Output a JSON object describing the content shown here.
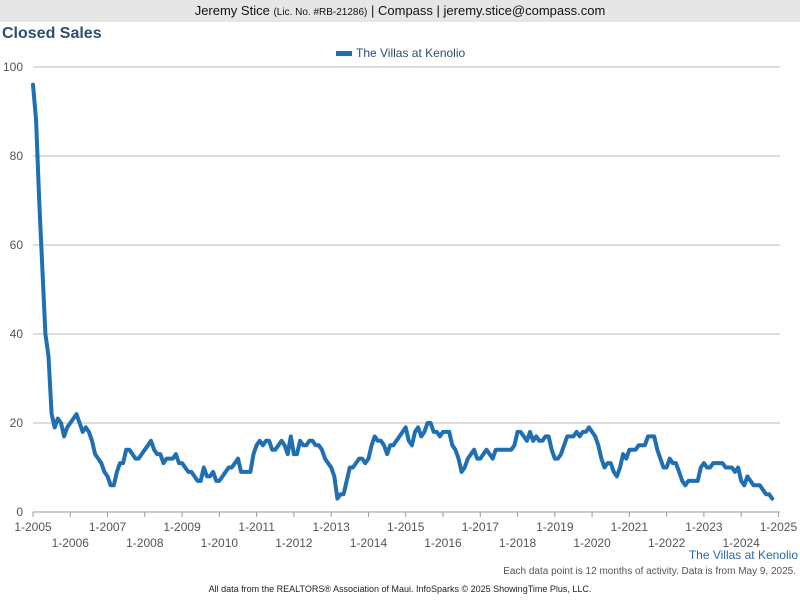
{
  "header": {
    "name": "Jeremy Stice",
    "license": "(Lic. No. #RB-21286)",
    "rest": "| Compass | jeremy.stice@compass.com"
  },
  "chart_data": {
    "type": "line",
    "title": "Closed Sales",
    "xlabel": "",
    "ylabel": "",
    "ylim": [
      0,
      100
    ],
    "y_ticks": [
      0,
      20,
      40,
      60,
      80,
      100
    ],
    "x_ticks": [
      "1-2005",
      "1-2006",
      "1-2007",
      "1-2008",
      "1-2009",
      "1-2010",
      "1-2011",
      "1-2012",
      "1-2013",
      "1-2014",
      "1-2015",
      "1-2016",
      "1-2017",
      "1-2018",
      "1-2019",
      "1-2020",
      "1-2021",
      "1-2022",
      "1-2023",
      "1-2024",
      "1-2025"
    ],
    "grid": "horizontal",
    "legend_position": "top-center",
    "colors": {
      "series": "#1f6fb2",
      "grid": "#bbbbbb",
      "title": "#2a4f73"
    },
    "series": [
      {
        "name": "The Villas at Kenolio",
        "x_start": "1-2005",
        "interval": "month",
        "values": [
          96,
          88,
          70,
          55,
          40,
          35,
          22,
          19,
          21,
          20,
          17,
          19,
          20,
          21,
          22,
          20,
          18,
          19,
          18,
          16,
          13,
          12,
          11,
          9,
          8,
          6,
          6,
          9,
          11,
          11,
          14,
          14,
          13,
          12,
          12,
          13,
          14,
          15,
          16,
          14,
          13,
          13,
          11,
          12,
          12,
          12,
          13,
          11,
          11,
          10,
          9,
          9,
          8,
          7,
          7,
          10,
          8,
          8,
          9,
          7,
          7,
          8,
          9,
          10,
          10,
          11,
          12,
          9,
          9,
          9,
          9,
          13,
          15,
          16,
          15,
          16,
          16,
          14,
          14,
          15,
          16,
          15,
          13,
          17,
          13,
          13,
          16,
          15,
          15,
          16,
          16,
          15,
          15,
          14,
          12,
          11,
          10,
          8,
          3,
          4,
          4,
          7,
          10,
          10,
          11,
          12,
          12,
          11,
          12,
          15,
          17,
          16,
          16,
          15,
          13,
          15,
          15,
          16,
          17,
          18,
          19,
          16,
          15,
          18,
          19,
          17,
          18,
          20,
          20,
          18,
          18,
          17,
          18,
          18,
          18,
          15,
          14,
          12,
          9,
          10,
          12,
          13,
          14,
          12,
          12,
          13,
          14,
          13,
          12,
          14,
          14,
          14,
          14,
          14,
          14,
          15,
          18,
          18,
          17,
          16,
          18,
          16,
          17,
          16,
          16,
          17,
          17,
          14,
          12,
          12,
          13,
          15,
          17,
          17,
          17,
          18,
          17,
          18,
          18,
          19,
          18,
          17,
          15,
          12,
          10,
          11,
          11,
          9,
          8,
          10,
          13,
          12,
          14,
          14,
          14,
          15,
          15,
          15,
          17,
          17,
          17,
          14,
          12,
          10,
          10,
          12,
          11,
          11,
          9,
          7,
          6,
          7,
          7,
          7,
          7,
          10,
          11,
          10,
          10,
          11,
          11,
          11,
          11,
          10,
          10,
          10,
          9,
          10,
          7,
          6,
          8,
          7,
          6,
          6,
          6,
          5,
          4,
          4,
          3
        ]
      }
    ]
  },
  "series_label": "The Villas at Kenolio",
  "note": "Each data point is 12 months of activity. Data is from May 9, 2025.",
  "footer": "All data from the REALTORS® Association of Maui. InfoSparks © 2025 ShowingTime Plus, LLC."
}
